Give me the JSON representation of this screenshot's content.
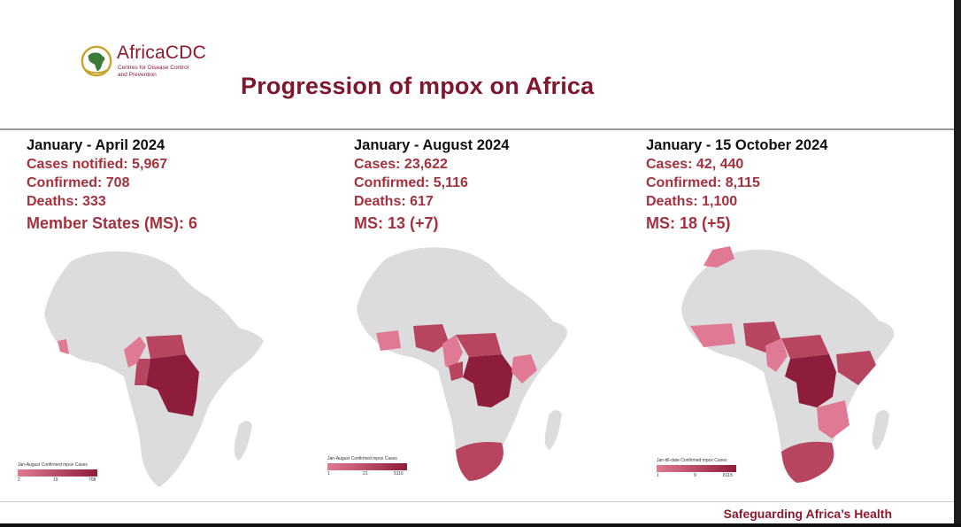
{
  "header": {
    "logo_name": "AfricaCDC",
    "logo_sub_line1": "Centres for Disease Control",
    "logo_sub_line2": "and Prevention",
    "title": "Progression of mpox on Africa"
  },
  "panels": [
    {
      "period": "January  - April 2024",
      "stats": [
        "Cases notified: 5,967",
        "Confirmed: 708",
        "Deaths: 333"
      ],
      "ms": "Member States (MS): 6",
      "legend_title": "Jan-August Confirmed mpox Cases",
      "legend_ticks": [
        "2",
        "19",
        "708"
      ]
    },
    {
      "period": "January - August 2024",
      "stats": [
        "Cases: 23,622",
        "Confirmed: 5,116",
        "Deaths: 617"
      ],
      "ms": "MS: 13 (+7)",
      "legend_title": "Jan-August Confirmed mpox Cases",
      "legend_ticks": [
        "1",
        "21",
        "5116"
      ]
    },
    {
      "period": "January - 15 October 2024",
      "stats": [
        "Cases: 42, 440",
        "Confirmed: 8,115",
        "Deaths: 1,100"
      ],
      "ms": "MS: 18 (+5)",
      "legend_title": "Jan-till-date Confirmed mpox Cases",
      "legend_ticks": [
        "1",
        "9",
        "8115"
      ]
    }
  ],
  "footer": {
    "tagline": "Safeguarding Africa’s Health"
  },
  "colors": {
    "brand": "#8b1a2e",
    "stat_text": "#a3323e",
    "map_base": "#dcdcdc",
    "map_high": "#8d1d3b",
    "map_mid": "#b8455f",
    "map_low": "#e07a94"
  }
}
